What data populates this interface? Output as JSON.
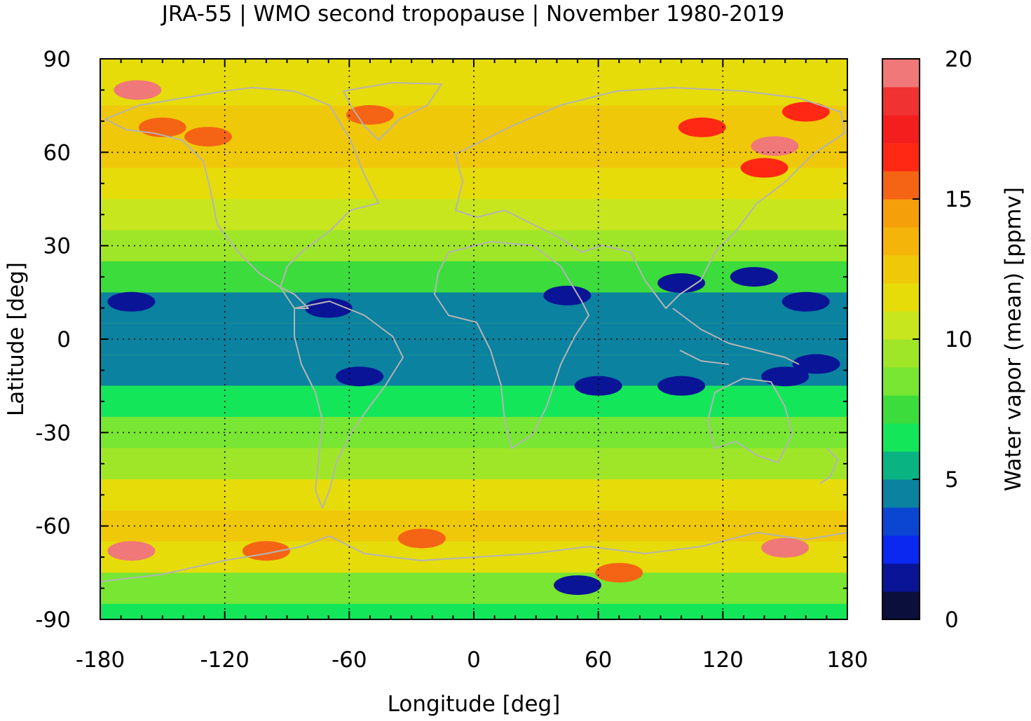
{
  "chart_data": {
    "type": "heatmap",
    "title": "JRA-55 | WMO second tropopause | November 1980-2019",
    "xlabel": "Longitude [deg]",
    "ylabel": "Latitude [deg]",
    "xlim": [
      -180,
      180
    ],
    "ylim": [
      -90,
      90
    ],
    "x_ticks": [
      -180,
      -120,
      -60,
      0,
      60,
      120,
      180
    ],
    "y_ticks": [
      -90,
      -60,
      -30,
      0,
      30,
      60,
      90
    ],
    "grid": true,
    "colorbar": {
      "label": "Water vapor (mean) [ppmv]",
      "range": [
        0,
        20
      ],
      "ticks": [
        0,
        5,
        10,
        15,
        20
      ],
      "levels": [
        0,
        1,
        2,
        3,
        4,
        5,
        6,
        7,
        8,
        9,
        10,
        11,
        12,
        13,
        14,
        15,
        16,
        17,
        18,
        19,
        20
      ],
      "colors": [
        "#0a0f3c",
        "#0a1496",
        "#0a28f0",
        "#0a46d2",
        "#0a82a0",
        "#0ab482",
        "#14e65a",
        "#3cdc3c",
        "#78e632",
        "#a0e628",
        "#c8e61e",
        "#e6dc0a",
        "#f0c80a",
        "#f5b40a",
        "#f5a00a",
        "#f56414",
        "#ff2814",
        "#f51e1e",
        "#f03232",
        "#f07878",
        "#ffcdd2"
      ]
    },
    "zonal_profile": {
      "lat": [
        90,
        80,
        70,
        60,
        50,
        40,
        30,
        20,
        10,
        0,
        -10,
        -20,
        -30,
        -40,
        -50,
        -60,
        -70,
        -80,
        -90
      ],
      "value": [
        11.5,
        11.8,
        12.3,
        12.6,
        11.6,
        10.2,
        9.1,
        7.6,
        4.9,
        4.6,
        4.7,
        6.2,
        8.3,
        9.6,
        11.4,
        12.2,
        11.5,
        8.7,
        6.8
      ]
    },
    "anomalies": [
      {
        "lon": -162,
        "lat": 80,
        "value": 19
      },
      {
        "lon": -150,
        "lat": 68,
        "value": 15
      },
      {
        "lon": -50,
        "lat": 72,
        "value": 15
      },
      {
        "lon": -128,
        "lat": 65,
        "value": 15
      },
      {
        "lon": 145,
        "lat": 62,
        "value": 19
      },
      {
        "lon": 140,
        "lat": 55,
        "value": 16
      },
      {
        "lon": 110,
        "lat": 68,
        "value": 16
      },
      {
        "lon": 160,
        "lat": 73,
        "value": 16
      },
      {
        "lon": -165,
        "lat": -68,
        "value": 19
      },
      {
        "lon": 150,
        "lat": -67,
        "value": 19
      },
      {
        "lon": -100,
        "lat": -68,
        "value": 15
      },
      {
        "lon": 70,
        "lat": -75,
        "value": 15
      },
      {
        "lon": -25,
        "lat": -64,
        "value": 15
      },
      {
        "lon": -70,
        "lat": 10,
        "value": 1
      },
      {
        "lon": -165,
        "lat": 12,
        "value": 1
      },
      {
        "lon": -55,
        "lat": -12,
        "value": 1
      },
      {
        "lon": 45,
        "lat": 14,
        "value": 1
      },
      {
        "lon": 100,
        "lat": 18,
        "value": 1
      },
      {
        "lon": 135,
        "lat": 20,
        "value": 1
      },
      {
        "lon": 160,
        "lat": 12,
        "value": 1
      },
      {
        "lon": 60,
        "lat": -15,
        "value": 1
      },
      {
        "lon": 100,
        "lat": -15,
        "value": 1
      },
      {
        "lon": 150,
        "lat": -12,
        "value": 1
      },
      {
        "lon": 165,
        "lat": -8,
        "value": 1
      },
      {
        "lon": 50,
        "lat": -79,
        "value": 1
      }
    ]
  }
}
